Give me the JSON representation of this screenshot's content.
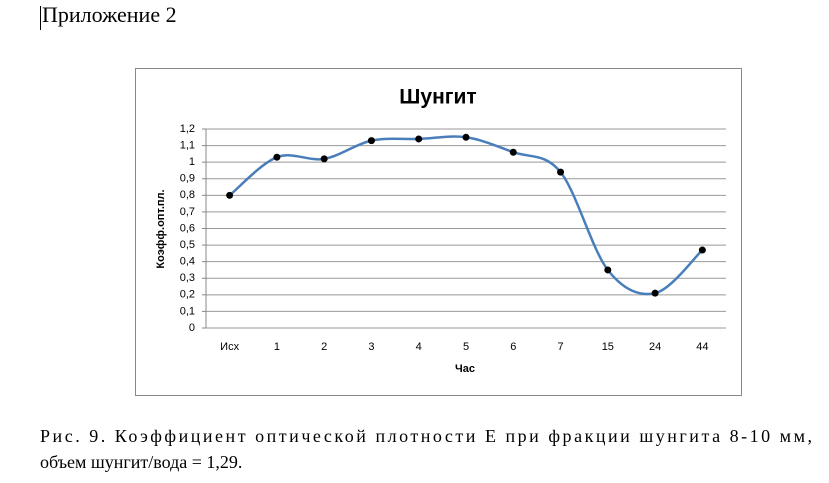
{
  "header": {
    "title": "Приложение 2"
  },
  "chart_data": {
    "type": "line",
    "title": "Шунгит",
    "x_label": "Час",
    "y_label": "Коэфф.опт.пл.",
    "categories": [
      "Исх",
      "1",
      "2",
      "3",
      "4",
      "5",
      "6",
      "7",
      "15",
      "24",
      "44"
    ],
    "values": [
      0.8,
      1.03,
      1.02,
      1.13,
      1.14,
      1.15,
      1.06,
      0.94,
      0.35,
      0.21,
      0.47
    ],
    "color": "#4a7ebb",
    "marker_color": "#000000",
    "smooth": true,
    "ylim": [
      0,
      1.2
    ],
    "yticks": [
      0,
      {
        "value": 0.1,
        "label": "0,1"
      },
      {
        "value": 0.2,
        "label": "0,2"
      },
      {
        "value": 0.3,
        "label": "0,3"
      },
      {
        "value": 0.4,
        "label": "0,4"
      },
      {
        "value": 0.5,
        "label": "0,5"
      },
      {
        "value": 0.6,
        "label": "0,6"
      },
      {
        "value": 0.7,
        "label": "0,7"
      },
      {
        "value": 0.8,
        "label": "0,8"
      },
      {
        "value": 0.9,
        "label": "0,9"
      },
      1,
      {
        "value": 1.1,
        "label": "1,1"
      },
      {
        "value": 1.2,
        "label": "1,2"
      }
    ],
    "grid": true
  },
  "caption": {
    "lines": [
      "Рис. 9. Коэффициент оптической плотности Е при фракции шунгита 8-10 мм,",
      "объем шунгит/вода = 1,29."
    ]
  }
}
